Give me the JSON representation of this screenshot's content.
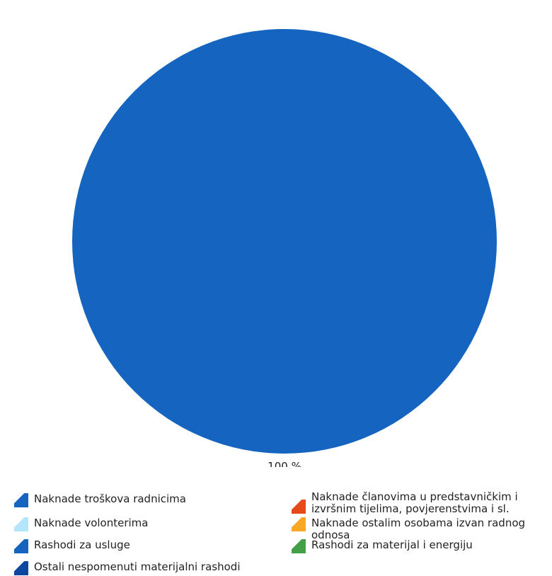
{
  "chart_data": {
    "type": "pie",
    "title": "",
    "slices": [
      {
        "label": "Naknade troškova radnicima",
        "value": 0,
        "color": "#1565c0"
      },
      {
        "label": "Naknade volonterima",
        "value": 0,
        "color": "#b3e5fc"
      },
      {
        "label": "Rashodi za usluge",
        "value": 100,
        "color": "#1565c0"
      },
      {
        "label": "Ostali nespomenuti materijalni rashodi",
        "value": 0,
        "color": "#0d47a1"
      },
      {
        "label": "Naknade članovima u predstavničkim i izvršnim tijelima, povjerenstvima i sl.",
        "value": 0,
        "color": "#e64a19"
      },
      {
        "label": "Naknade ostalim osobama izvan radnog odnosa",
        "value": 0,
        "color": "#f9a825"
      },
      {
        "label": "Rashodi za materijal i energiju",
        "value": 0,
        "color": "#43a047"
      }
    ],
    "data_labels": [
      "100 %"
    ],
    "legend_position": "bottom"
  }
}
